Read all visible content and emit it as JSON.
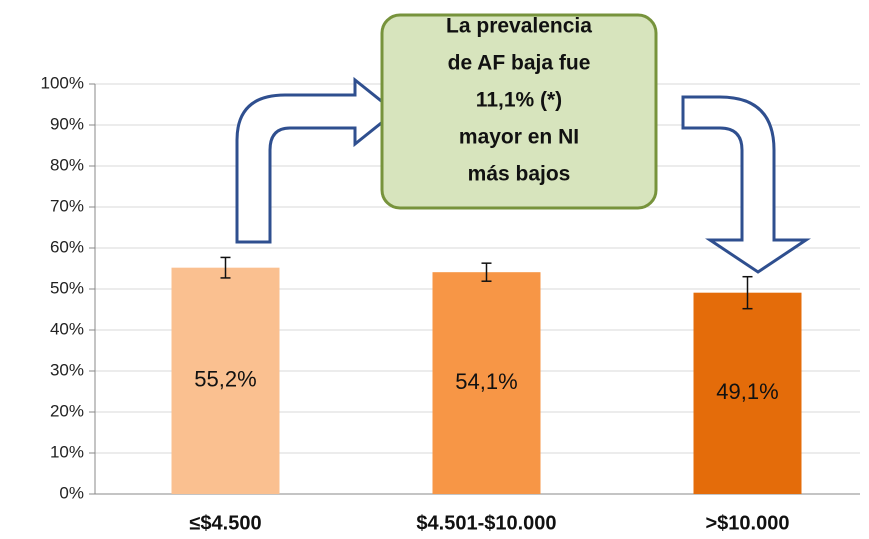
{
  "chart_data": {
    "type": "bar",
    "categories": [
      "≤$4.500",
      "$4.501-$10.000",
      ">$10.000"
    ],
    "values": [
      55.2,
      54.1,
      49.1
    ],
    "value_labels": [
      "55,2%",
      "54,1%",
      "49,1%"
    ],
    "errors": [
      2.5,
      2.2,
      3.9
    ],
    "colors": [
      "#fac090",
      "#f79646",
      "#e46c0a"
    ],
    "ylim": [
      0,
      100
    ],
    "yticks": [
      {
        "value": 0,
        "label": "0%"
      },
      {
        "value": 10,
        "label": "10%"
      },
      {
        "value": 20,
        "label": "20%"
      },
      {
        "value": 30,
        "label": "30%"
      },
      {
        "value": 40,
        "label": "40%"
      },
      {
        "value": 50,
        "label": "50%"
      },
      {
        "value": 60,
        "label": "60%"
      },
      {
        "value": 70,
        "label": "70%"
      },
      {
        "value": 80,
        "label": "80%"
      },
      {
        "value": 90,
        "label": "90%"
      },
      {
        "value": 100,
        "label": "100%"
      }
    ],
    "grid": true,
    "annotation": [
      "La prevalencia",
      "de AF baja fue",
      "11,1% (*)",
      "mayor en NI",
      "más bajos"
    ]
  }
}
